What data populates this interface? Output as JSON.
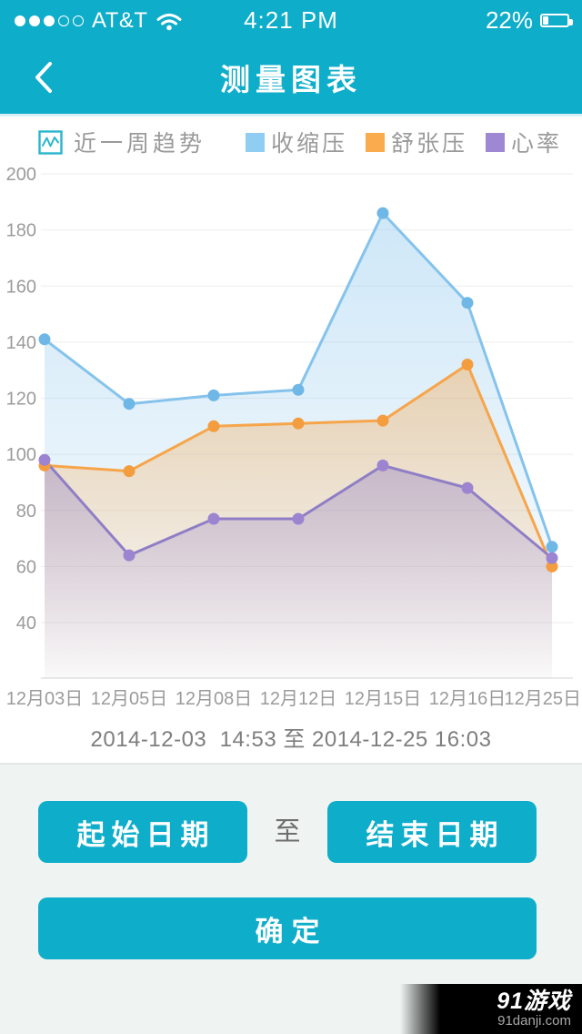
{
  "status_bar": {
    "signal": {
      "filled": 3,
      "total": 5
    },
    "carrier": "AT&T",
    "time": "4:21 PM",
    "battery_percent": "22%",
    "battery_level": 0.22
  },
  "header": {
    "title": "测量图表"
  },
  "legend": {
    "trend_label": "近一周趋势"
  },
  "chart_data": {
    "type": "line",
    "title": "近一周趋势",
    "x_labels": [
      "12月03日",
      "12月05日",
      "12月08日",
      "12月12日",
      "12月15日",
      "12月16日",
      "12月25日"
    ],
    "y_ticks": [
      200,
      180,
      160,
      140,
      120,
      100,
      80,
      60,
      40
    ],
    "ylim": [
      40,
      200
    ],
    "grid": true,
    "legend_position": "top-right",
    "series": [
      {
        "name": "收缩压",
        "values": [
          141,
          118,
          121,
          123,
          186,
          154,
          67
        ],
        "color": "#85C3EC",
        "dot_color": "#6FB7E6",
        "swatch": "#8FCEF2"
      },
      {
        "name": "舒张压",
        "values": [
          96,
          94,
          110,
          111,
          112,
          132,
          60
        ],
        "color": "#F6A54A",
        "dot_color": "#F49D3F",
        "swatch": "#F9AB4E"
      },
      {
        "name": "心率",
        "values": [
          98,
          64,
          77,
          77,
          96,
          88,
          63
        ],
        "color": "#8F7EC6",
        "dot_color": "#9C84D1",
        "swatch": "#9E87D3"
      }
    ]
  },
  "footer": {
    "date_range": "2014-12-03  14:53 至 2014-12-25 16:03",
    "start_button": "起始日期",
    "to_label": "至",
    "end_button": "结束日期",
    "confirm_button": "确定"
  },
  "watermark": {
    "brand": "91游戏",
    "site": "91danji.com"
  },
  "colors": {
    "accent": "#0EADCA",
    "panel_bg": "#EFF4F2",
    "grid_line": "#EDEDED",
    "axis_line": "#E2E2E2",
    "muted_text": "#9A9A9A"
  }
}
